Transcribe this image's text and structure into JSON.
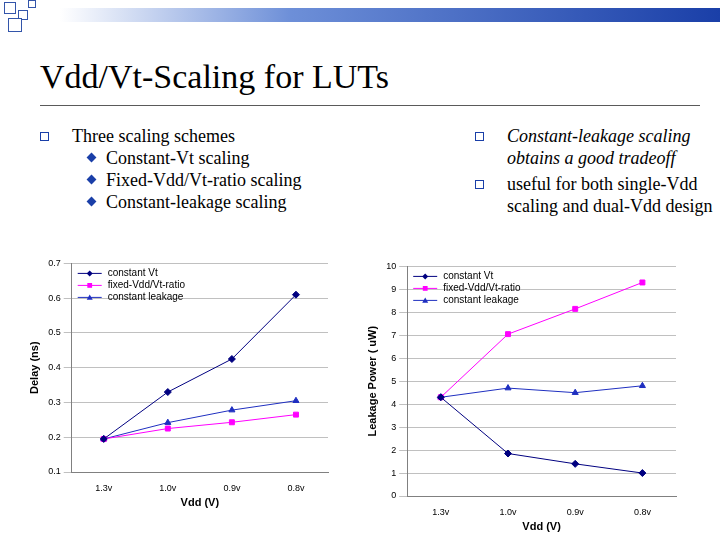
{
  "slide": {
    "title": "Vdd/Vt-Scaling for LUTs",
    "left_bullets": [
      {
        "text": "Three scaling schemes",
        "sub": [
          "Constant-Vt scaling",
          "Fixed-Vdd/Vt-ratio scaling",
          "Constant-leakage scaling"
        ]
      }
    ],
    "right_bullets": [
      {
        "emphasis": "Constant-leakage scaling",
        "text": "obtains a good tradeoff"
      },
      {
        "text": "useful for both single-Vdd scaling and dual-Vdd design"
      }
    ]
  },
  "chart_data": [
    {
      "type": "line",
      "xlabel": "Vdd (V)",
      "ylabel": "Delay (ns)",
      "categories": [
        "1.3v",
        "1.0v",
        "0.9v",
        "0.8v"
      ],
      "series": [
        {
          "name": "constant Vt",
          "color": "#000080",
          "marker": "diamond",
          "values": [
            0.195,
            0.33,
            0.425,
            0.61
          ]
        },
        {
          "name": "fixed-Vdd/Vt-ratio",
          "color": "#ff00ff",
          "marker": "square",
          "values": [
            0.195,
            0.225,
            0.243,
            0.265
          ]
        },
        {
          "name": "constant leakage",
          "color": "#1f2fc0",
          "marker": "triangle",
          "values": [
            0.195,
            0.242,
            0.278,
            0.305
          ]
        }
      ],
      "ylim": [
        0.1,
        0.7
      ],
      "yticks": [
        0.1,
        0.2,
        0.3,
        0.4,
        0.5,
        0.6,
        0.7
      ],
      "grid": true,
      "legend": "top-left"
    },
    {
      "type": "line",
      "xlabel": "Vdd (V)",
      "ylabel": "Leakage Power ( uW)",
      "categories": [
        "1.3v",
        "1.0v",
        "0.9v",
        "0.8v"
      ],
      "series": [
        {
          "name": "constant Vt",
          "color": "#000080",
          "marker": "diamond",
          "values": [
            4.3,
            1.85,
            1.4,
            1.0
          ]
        },
        {
          "name": "fixed-Vdd/Vt-ratio",
          "color": "#ff00ff",
          "marker": "square",
          "values": [
            4.3,
            7.05,
            8.15,
            9.3
          ]
        },
        {
          "name": "constant leakage",
          "color": "#1f2fc0",
          "marker": "triangle",
          "values": [
            4.3,
            4.7,
            4.5,
            4.8
          ]
        }
      ],
      "ylim": [
        0,
        10
      ],
      "yticks": [
        0,
        1,
        2,
        3,
        4,
        5,
        6,
        7,
        8,
        9,
        10
      ],
      "grid": true,
      "legend": "top-left"
    }
  ]
}
